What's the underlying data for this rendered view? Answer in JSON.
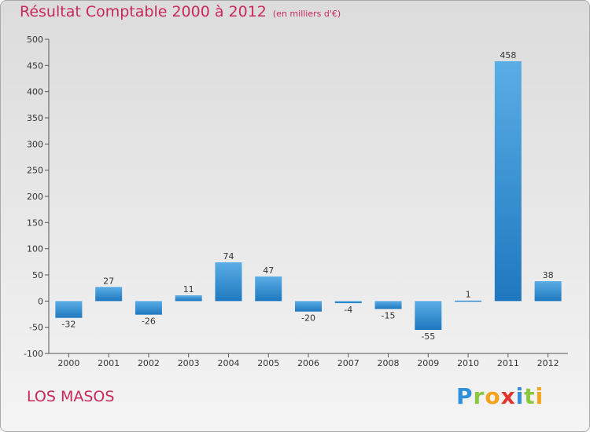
{
  "title": "Résultat Comptable 2000 à 2012",
  "subtitle": "(en milliers d'€)",
  "commune": "LOS MASOS",
  "logo": [
    "P",
    "r",
    "o",
    "x",
    "i",
    "t",
    "i"
  ],
  "chart_data": {
    "type": "bar",
    "categories": [
      "2000",
      "2001",
      "2002",
      "2003",
      "2004",
      "2005",
      "2006",
      "2007",
      "2008",
      "2009",
      "2010",
      "2011",
      "2012"
    ],
    "values": [
      -32,
      27,
      -26,
      11,
      74,
      47,
      -20,
      -4,
      -15,
      -55,
      1,
      458,
      38
    ],
    "ylim": [
      -100,
      500
    ],
    "yticks": [
      -100,
      -50,
      0,
      50,
      100,
      150,
      200,
      250,
      300,
      350,
      400,
      450,
      500
    ],
    "grid": false,
    "colors": {
      "bar_light": "#5aaee6",
      "bar_dark": "#1f78bf"
    }
  }
}
